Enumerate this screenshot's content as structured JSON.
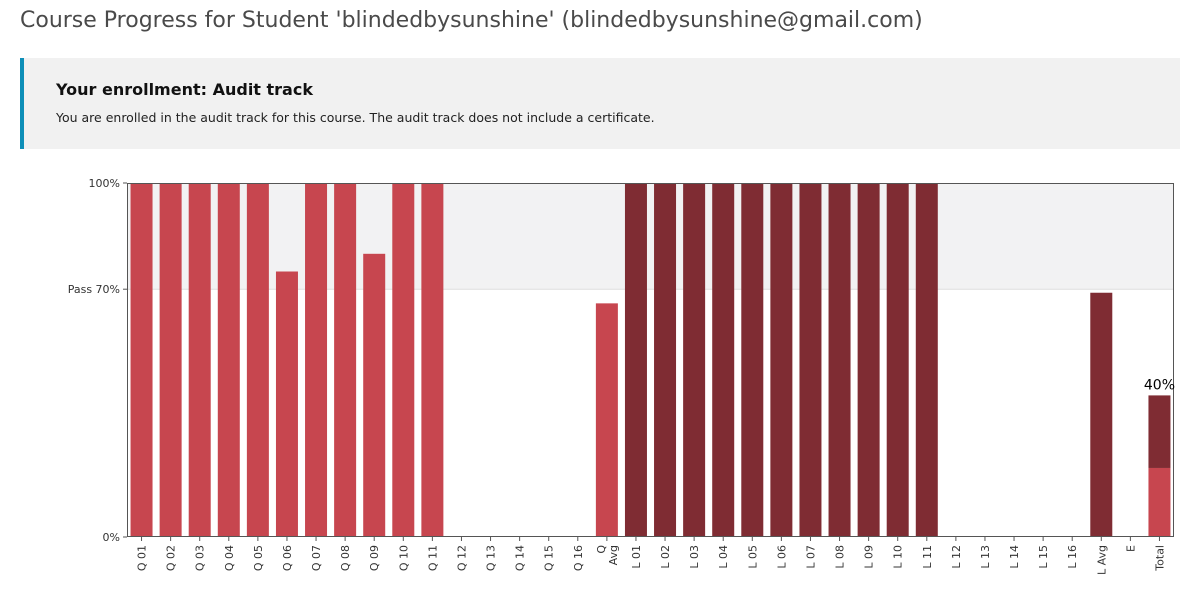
{
  "header": {
    "title": "Course Progress for Student 'blindedbysunshine' (blindedbysunshine@gmail.com)"
  },
  "enrollment": {
    "heading": "Your enrollment: Audit track",
    "message": "You are enrolled in the audit track for this course. The audit track does not include a certificate.",
    "accent_color": "#0e8fb8"
  },
  "chart_data": {
    "type": "bar",
    "title": "",
    "xlabel": "",
    "ylabel": "",
    "ylim": [
      0,
      100
    ],
    "y_ticks": [
      {
        "value": 0,
        "label": "0%"
      },
      {
        "value": 70,
        "label": "Pass 70%"
      },
      {
        "value": 100,
        "label": "100%"
      }
    ],
    "pass_threshold": 70,
    "grid": false,
    "colors": {
      "quiz": "#c7464f",
      "lab": "#7f2c33",
      "pass_band": "#f2f2f3"
    },
    "categories": [
      "Q 01",
      "Q 02",
      "Q 03",
      "Q 04",
      "Q 05",
      "Q 06",
      "Q 07",
      "Q 08",
      "Q 09",
      "Q 10",
      "Q 11",
      "Q 12",
      "Q 13",
      "Q 14",
      "Q 15",
      "Q 16",
      "Q Avg",
      "L 01",
      "L 02",
      "L 03",
      "L 04",
      "L 05",
      "L 06",
      "L 07",
      "L 08",
      "L 09",
      "L 10",
      "L 11",
      "L 12",
      "L 13",
      "L 14",
      "L 15",
      "L 16",
      "L Avg",
      "E",
      "Total"
    ],
    "category_groups": [
      "quiz",
      "quiz",
      "quiz",
      "quiz",
      "quiz",
      "quiz",
      "quiz",
      "quiz",
      "quiz",
      "quiz",
      "quiz",
      "quiz",
      "quiz",
      "quiz",
      "quiz",
      "quiz",
      "quiz",
      "lab",
      "lab",
      "lab",
      "lab",
      "lab",
      "lab",
      "lab",
      "lab",
      "lab",
      "lab",
      "lab",
      "lab",
      "lab",
      "lab",
      "lab",
      "lab",
      "lab",
      "exam",
      "total"
    ],
    "values": [
      100,
      100,
      100,
      100,
      100,
      75,
      100,
      100,
      80,
      100,
      100,
      0,
      0,
      0,
      0,
      0,
      66,
      100,
      100,
      100,
      100,
      100,
      100,
      100,
      100,
      100,
      100,
      100,
      0,
      0,
      0,
      0,
      0,
      69,
      0,
      40
    ],
    "total_breakdown": {
      "quiz": 19.5,
      "lab": 20.5,
      "label": "40%"
    }
  }
}
